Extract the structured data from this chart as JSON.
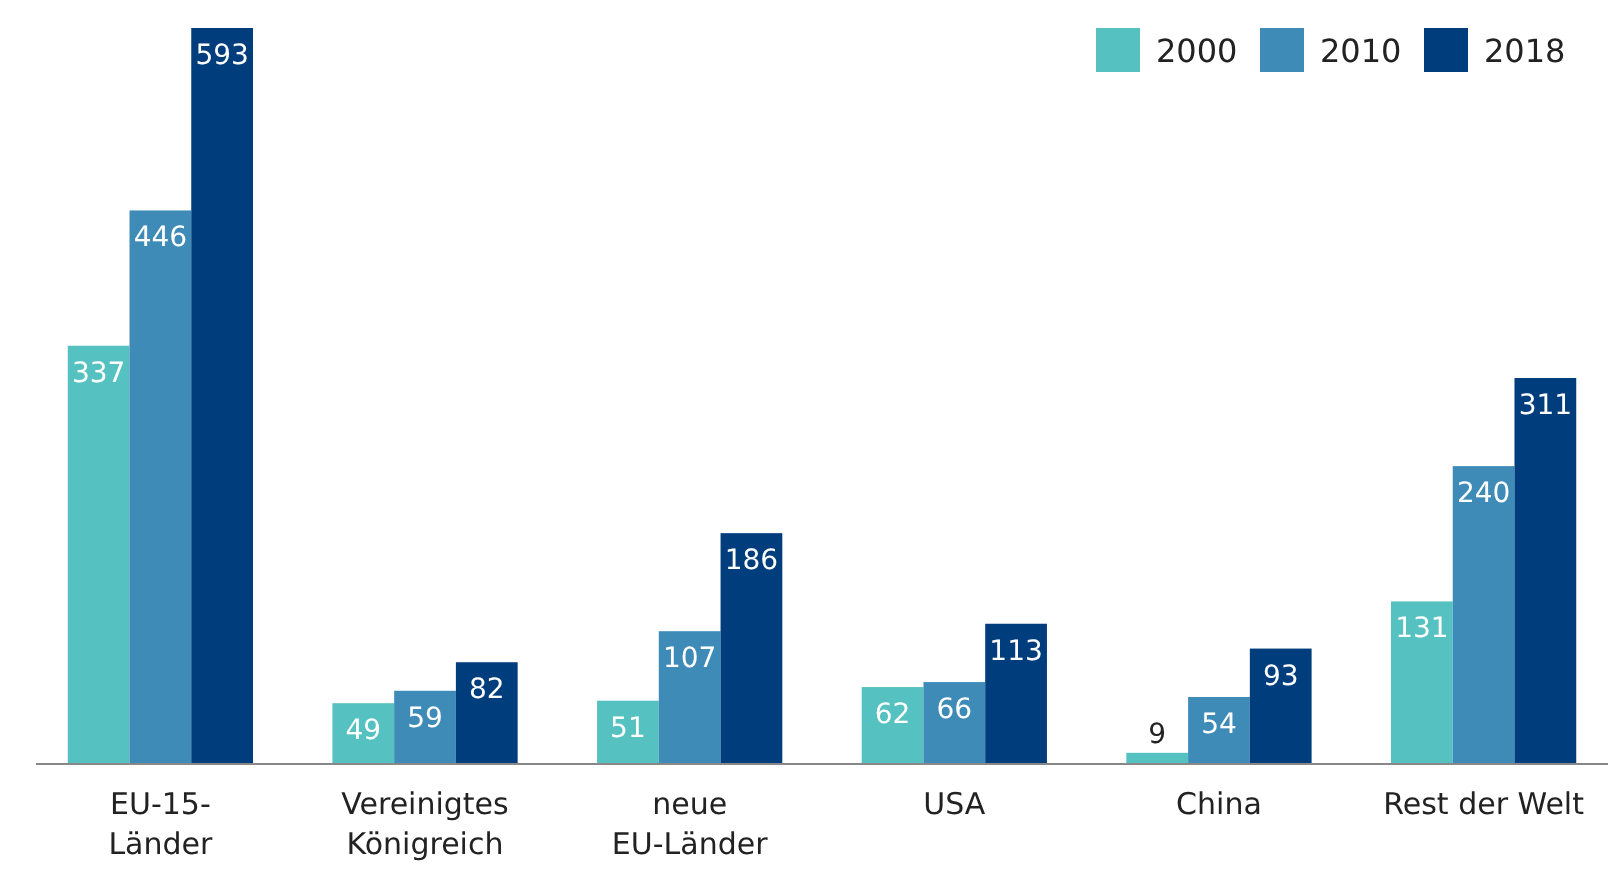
{
  "chart_data": {
    "type": "bar",
    "categories": [
      "EU-15-\nLänder",
      "Vereinigtes\nKönigreich",
      "neue\nEU-Länder",
      "USA",
      "China",
      "Rest der Welt"
    ],
    "series": [
      {
        "name": "2000",
        "color": "#56c1c1",
        "values": [
          337,
          49,
          51,
          62,
          9,
          131
        ]
      },
      {
        "name": "2010",
        "color": "#3f8bb7",
        "values": [
          446,
          59,
          107,
          66,
          54,
          240
        ]
      },
      {
        "name": "2018",
        "color": "#003d7c",
        "values": [
          593,
          82,
          186,
          113,
          93,
          311
        ]
      }
    ],
    "data_labels": true,
    "legend": "top right"
  }
}
